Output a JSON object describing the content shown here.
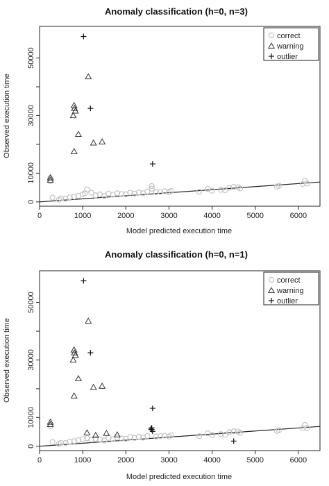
{
  "chart_data": [
    {
      "type": "scatter",
      "title": "Anomaly classification (h=0, n=3)",
      "xlabel": "Model predicted execution time",
      "ylabel": "Observed execution time",
      "xlim": [
        0,
        6500
      ],
      "ylim": [
        -1500,
        61000
      ],
      "xticks": [
        "0",
        "1000",
        "2000",
        "3000",
        "4000",
        "5000",
        "6000"
      ],
      "yticks": [
        "0",
        "10000",
        "30000",
        "50000"
      ],
      "legend": {
        "position": "top-right",
        "entries": [
          "correct",
          "warning",
          "outlier"
        ]
      },
      "colors": {
        "correct": "#c4c4c4",
        "warning": "#333333",
        "outlier": "#111111",
        "fit_line": "#222222"
      },
      "fit_line": {
        "x": [
          0,
          6500
        ],
        "y": [
          0,
          6900
        ]
      },
      "series": [
        {
          "name": "correct",
          "marker": "circle",
          "points": [
            [
              250,
              7200
            ],
            [
              260,
              7600
            ],
            [
              250,
              8300
            ],
            [
              300,
              1500
            ],
            [
              450,
              800
            ],
            [
              500,
              1200
            ],
            [
              600,
              1100
            ],
            [
              700,
              1600
            ],
            [
              800,
              1800
            ],
            [
              900,
              2100
            ],
            [
              1000,
              2600
            ],
            [
              1050,
              3000
            ],
            [
              1100,
              4300
            ],
            [
              1200,
              3200
            ],
            [
              1300,
              2300
            ],
            [
              1400,
              2600
            ],
            [
              1500,
              2000
            ],
            [
              1600,
              2900
            ],
            [
              1700,
              2500
            ],
            [
              1800,
              3000
            ],
            [
              1900,
              2700
            ],
            [
              2000,
              2600
            ],
            [
              2100,
              3200
            ],
            [
              2200,
              2900
            ],
            [
              2300,
              3300
            ],
            [
              2400,
              3000
            ],
            [
              2500,
              3600
            ],
            [
              2600,
              5500
            ],
            [
              2600,
              4600
            ],
            [
              2700,
              3400
            ],
            [
              2800,
              3500
            ],
            [
              2900,
              3700
            ],
            [
              3000,
              3400
            ],
            [
              3050,
              3800
            ],
            [
              3700,
              3500
            ],
            [
              3900,
              4500
            ],
            [
              4000,
              3900
            ],
            [
              4200,
              4200
            ],
            [
              4300,
              4000
            ],
            [
              4400,
              4900
            ],
            [
              4500,
              5200
            ],
            [
              4600,
              5100
            ],
            [
              4650,
              4700
            ],
            [
              5500,
              5300
            ],
            [
              5550,
              5600
            ],
            [
              6100,
              6200
            ],
            [
              6150,
              7400
            ],
            [
              6200,
              6400
            ]
          ]
        },
        {
          "name": "warning",
          "marker": "triangle",
          "points": [
            [
              250,
              7600
            ],
            [
              250,
              8400
            ],
            [
              780,
              30000
            ],
            [
              800,
              33500
            ],
            [
              810,
              32500
            ],
            [
              830,
              31600
            ],
            [
              800,
              17500
            ],
            [
              900,
              23500
            ],
            [
              1130,
              43500
            ],
            [
              1250,
              20500
            ],
            [
              1450,
              20900
            ]
          ]
        },
        {
          "name": "outlier",
          "marker": "plus",
          "points": [
            [
              1020,
              57500
            ],
            [
              1180,
              32500
            ],
            [
              2620,
              13200
            ]
          ]
        }
      ]
    },
    {
      "type": "scatter",
      "title": "Anomaly classification (h=0, n=1)",
      "xlabel": "Model predicted execution time",
      "ylabel": "Observed execution time",
      "xlim": [
        0,
        6500
      ],
      "ylim": [
        -1500,
        61000
      ],
      "xticks": [
        "0",
        "1000",
        "2000",
        "3000",
        "4000",
        "5000",
        "6000"
      ],
      "yticks": [
        "0",
        "10000",
        "30000",
        "50000"
      ],
      "legend": {
        "position": "top-right",
        "entries": [
          "correct",
          "warning",
          "outlier"
        ]
      },
      "colors": {
        "correct": "#c4c4c4",
        "warning": "#333333",
        "outlier": "#111111",
        "fit_line": "#222222"
      },
      "fit_line": {
        "x": [
          0,
          6500
        ],
        "y": [
          0,
          6900
        ]
      },
      "series": [
        {
          "name": "correct",
          "marker": "circle",
          "points": [
            [
              250,
              7000
            ],
            [
              300,
              1500
            ],
            [
              450,
              800
            ],
            [
              500,
              1200
            ],
            [
              600,
              1100
            ],
            [
              700,
              1600
            ],
            [
              800,
              1800
            ],
            [
              900,
              2100
            ],
            [
              1000,
              2500
            ],
            [
              1100,
              2800
            ],
            [
              1200,
              2300
            ],
            [
              1300,
              2600
            ],
            [
              1400,
              2400
            ],
            [
              1500,
              2000
            ],
            [
              1600,
              2900
            ],
            [
              1700,
              2500
            ],
            [
              1800,
              3000
            ],
            [
              1900,
              2700
            ],
            [
              2000,
              2600
            ],
            [
              2100,
              3200
            ],
            [
              2200,
              2900
            ],
            [
              2300,
              3300
            ],
            [
              2400,
              3000
            ],
            [
              2500,
              3600
            ],
            [
              2700,
              3400
            ],
            [
              2800,
              3500
            ],
            [
              2900,
              3700
            ],
            [
              3000,
              3400
            ],
            [
              3050,
              3800
            ],
            [
              3700,
              3500
            ],
            [
              3900,
              4500
            ],
            [
              4000,
              3900
            ],
            [
              4200,
              4200
            ],
            [
              4300,
              4000
            ],
            [
              4400,
              4900
            ],
            [
              4500,
              5200
            ],
            [
              4600,
              5100
            ],
            [
              4650,
              4700
            ],
            [
              5500,
              5300
            ],
            [
              5550,
              5600
            ],
            [
              6100,
              6200
            ],
            [
              6150,
              7400
            ],
            [
              6200,
              6400
            ]
          ]
        },
        {
          "name": "warning",
          "marker": "triangle",
          "points": [
            [
              250,
              7600
            ],
            [
              250,
              8400
            ],
            [
              780,
              30000
            ],
            [
              800,
              33500
            ],
            [
              810,
              32500
            ],
            [
              830,
              31600
            ],
            [
              800,
              17500
            ],
            [
              900,
              23500
            ],
            [
              1130,
              43500
            ],
            [
              1250,
              20500
            ],
            [
              1450,
              20900
            ],
            [
              1100,
              4700
            ],
            [
              1300,
              3800
            ],
            [
              1550,
              4500
            ],
            [
              1800,
              4000
            ]
          ]
        },
        {
          "name": "outlier",
          "marker": "plus",
          "points": [
            [
              1020,
              57500
            ],
            [
              1180,
              32500
            ],
            [
              2620,
              13200
            ],
            [
              2600,
              5800
            ],
            [
              2620,
              5200
            ],
            [
              2580,
              6000
            ],
            [
              2600,
              6400
            ],
            [
              4500,
              1800
            ]
          ]
        }
      ]
    }
  ]
}
